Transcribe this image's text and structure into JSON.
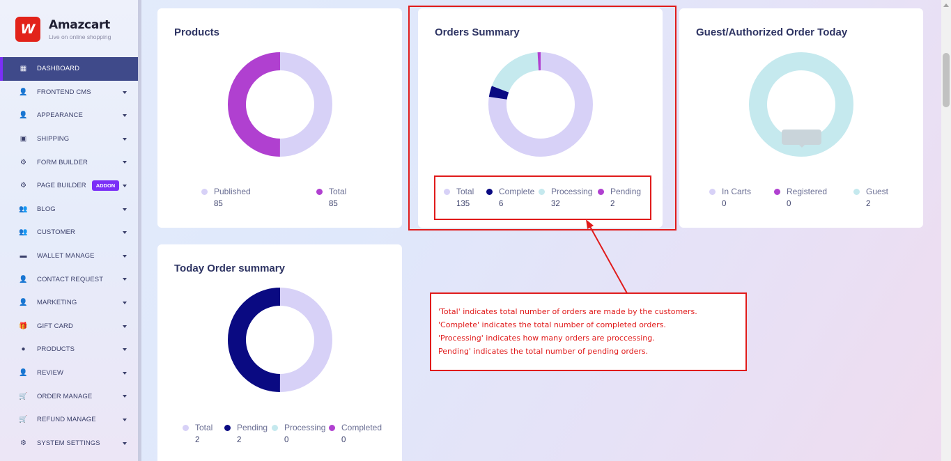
{
  "brand": {
    "name": "Amazcart",
    "tagline": "Live on online shopping",
    "logo_text": "W"
  },
  "sidebar": {
    "items": [
      {
        "label": "DASHBOARD",
        "icon": "grid-icon",
        "glyph": "▦",
        "active": true,
        "caret": false
      },
      {
        "label": "FRONTEND CMS",
        "icon": "user-icon",
        "glyph": "👤",
        "caret": true
      },
      {
        "label": "APPEARANCE",
        "icon": "user-icon",
        "glyph": "👤",
        "caret": true
      },
      {
        "label": "SHIPPING",
        "icon": "truck-icon",
        "glyph": "▣",
        "caret": true
      },
      {
        "label": "FORM BUILDER",
        "icon": "cogs-icon",
        "glyph": "⚙",
        "caret": true
      },
      {
        "label": "PAGE BUILDER",
        "icon": "cogs-icon",
        "glyph": "⚙",
        "caret": true,
        "badge": "ADDON"
      },
      {
        "label": "BLOG",
        "icon": "users-icon",
        "glyph": "👥",
        "caret": true
      },
      {
        "label": "CUSTOMER",
        "icon": "users-icon",
        "glyph": "👥",
        "caret": true
      },
      {
        "label": "WALLET MANAGE",
        "icon": "wallet-icon",
        "glyph": "▬",
        "caret": true
      },
      {
        "label": "CONTACT REQUEST",
        "icon": "user-icon",
        "glyph": "👤",
        "caret": true
      },
      {
        "label": "MARKETING",
        "icon": "user-icon",
        "glyph": "👤",
        "caret": true
      },
      {
        "label": "GIFT CARD",
        "icon": "gift-icon",
        "glyph": "🎁",
        "caret": true
      },
      {
        "label": "PRODUCTS",
        "icon": "product-icon",
        "glyph": "●",
        "caret": true
      },
      {
        "label": "REVIEW",
        "icon": "user-icon",
        "glyph": "👤",
        "caret": true
      },
      {
        "label": "ORDER MANAGE",
        "icon": "cart-icon",
        "glyph": "🛒",
        "caret": true
      },
      {
        "label": "REFUND MANAGE",
        "icon": "cart-icon",
        "glyph": "🛒",
        "caret": true
      },
      {
        "label": "SYSTEM SETTINGS",
        "icon": "gear-icon",
        "glyph": "⚙",
        "caret": true
      }
    ]
  },
  "colors": {
    "lavender": "#d7d1f7",
    "purple": "#b040d0",
    "navy": "#0a0a82",
    "light_cyan": "#c5e9ee",
    "annotation_red": "#e01b1b",
    "sidebar_active": "#3f4a8a"
  },
  "products": {
    "title": "Products",
    "legend": [
      {
        "label": "Published",
        "value": "85",
        "color": "#d7d1f7"
      },
      {
        "label": "Total",
        "value": "85",
        "color": "#b040d0"
      }
    ]
  },
  "orders_summary": {
    "title": "Orders Summary",
    "legend": [
      {
        "label": "Total",
        "value": "135",
        "color": "#d7d1f7"
      },
      {
        "label": "Complete",
        "value": "6",
        "color": "#0a0a82"
      },
      {
        "label": "Processing",
        "value": "32",
        "color": "#c5e9ee"
      },
      {
        "label": "Pending",
        "value": "2",
        "color": "#b040d0"
      }
    ]
  },
  "guest_orders": {
    "title": "Guest/Authorized Order Today",
    "legend": [
      {
        "label": "In Carts",
        "value": "0",
        "color": "#d7d1f7"
      },
      {
        "label": "Registered",
        "value": "0",
        "color": "#b040d0"
      },
      {
        "label": "Guest",
        "value": "2",
        "color": "#c5e9ee"
      }
    ]
  },
  "today_orders": {
    "title": "Today Order summary",
    "legend": [
      {
        "label": "Total",
        "value": "2",
        "color": "#d7d1f7"
      },
      {
        "label": "Pending",
        "value": "2",
        "color": "#0a0a82"
      },
      {
        "label": "Processing",
        "value": "0",
        "color": "#c5e9ee"
      },
      {
        "label": "Completed",
        "value": "0",
        "color": "#b040d0"
      }
    ]
  },
  "annotation": {
    "lines": [
      "'Total' indicates total number of orders are made by the customers.",
      "'Complete' indicates the total number of completed orders.",
      "'Processing' indicates how many orders are proccessing.",
      "Pending' indicates the total number of pending orders."
    ]
  },
  "chart_data": [
    {
      "type": "pie",
      "title": "Products",
      "categories": [
        "Published",
        "Total"
      ],
      "values": [
        85,
        85
      ]
    },
    {
      "type": "pie",
      "title": "Orders Summary",
      "categories": [
        "Total",
        "Complete",
        "Processing",
        "Pending"
      ],
      "values": [
        135,
        6,
        32,
        2
      ]
    },
    {
      "type": "pie",
      "title": "Guest/Authorized Order Today",
      "categories": [
        "In Carts",
        "Registered",
        "Guest"
      ],
      "values": [
        0,
        0,
        2
      ]
    },
    {
      "type": "pie",
      "title": "Today Order summary",
      "categories": [
        "Total",
        "Pending",
        "Processing",
        "Completed"
      ],
      "values": [
        2,
        2,
        0,
        0
      ]
    }
  ]
}
